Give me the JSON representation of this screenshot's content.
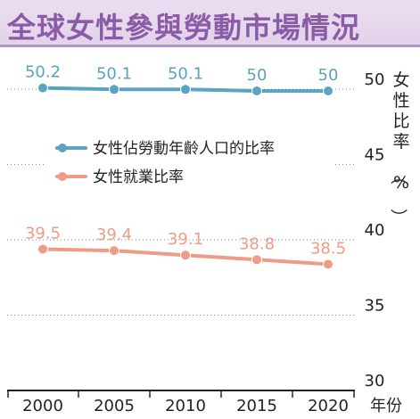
{
  "chart_data": {
    "type": "line",
    "title": "全球女性參與勞動市場情況",
    "x": [
      2000,
      2005,
      2010,
      2015,
      2020
    ],
    "x_tick_labels": [
      "2000",
      "2005",
      "2010",
      "2015",
      "2020"
    ],
    "xlabel": "年份",
    "ylabel": "女性比率（%）",
    "ylim": [
      30,
      50
    ],
    "y_ticks": [
      "50",
      "45",
      "40",
      "35",
      "30"
    ],
    "grid": "horizontal dotted",
    "legend_position": "top-center",
    "series": [
      {
        "name": "女性佔勞動年齡人口的比率",
        "values": [
          50.2,
          50.1,
          50.1,
          50,
          50
        ],
        "labels": [
          "50.2",
          "50.1",
          "50.1",
          "50",
          "50"
        ],
        "color": "#5aa3c2"
      },
      {
        "name": "女性就業比率",
        "values": [
          39.5,
          39.4,
          39.1,
          38.8,
          38.5
        ],
        "labels": [
          "39.5",
          "39.4",
          "39.1",
          "38.8",
          "38.5"
        ],
        "color": "#ee9b88"
      }
    ]
  }
}
